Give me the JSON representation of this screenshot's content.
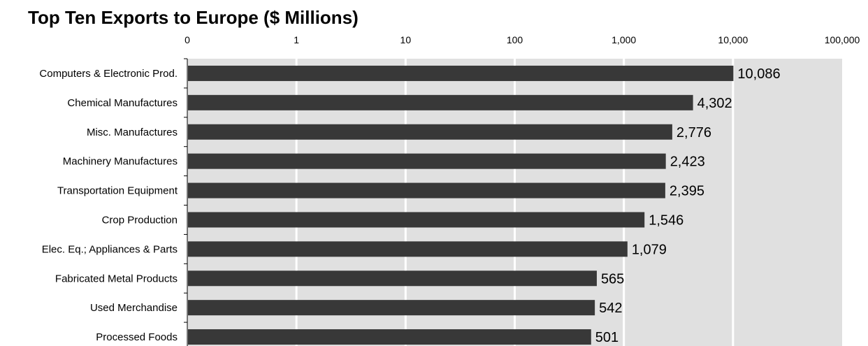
{
  "chart_data": {
    "type": "bar",
    "orientation": "horizontal",
    "title": "Top Ten Exports to Europe ($ Millions)",
    "xscale": "log",
    "xlim": [
      0.1,
      100000
    ],
    "xticks": [
      "0",
      "1",
      "10",
      "100",
      "1,000",
      "10,000",
      "100,000"
    ],
    "xaxis_position": "top",
    "grid": "vertical",
    "categories": [
      "Computers & Electronic Prod.",
      "Chemical Manufactures",
      "Misc. Manufactures",
      "Machinery Manufactures",
      "Transportation Equipment",
      "Crop Production",
      "Elec. Eq.; Appliances & Parts",
      "Fabricated Metal Products",
      "Used Merchandise",
      "Processed Foods"
    ],
    "values": [
      10086,
      4302,
      2776,
      2423,
      2395,
      1546,
      1079,
      565,
      542,
      501
    ],
    "data_labels": [
      "10,086",
      "4,302",
      "2,776",
      "2,423",
      "2,395",
      "1,546",
      "1,079",
      "565",
      "542",
      "501"
    ],
    "colors": {
      "bar": "#383838",
      "plot_background": "#e0e0e0",
      "gridline": "#ffffff"
    }
  }
}
